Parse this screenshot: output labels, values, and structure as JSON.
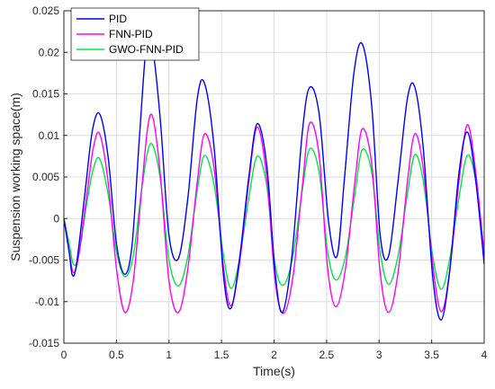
{
  "chart_data": {
    "type": "line",
    "title": "",
    "xlabel": "Time(s)",
    "ylabel": "Suspension working space(m)",
    "xlim": [
      0,
      4
    ],
    "ylim": [
      -0.015,
      0.025
    ],
    "x_ticks": [
      "0",
      "0.5",
      "1",
      "1.5",
      "2",
      "2.5",
      "3",
      "3.5",
      "4"
    ],
    "y_ticks": [
      "-0.015",
      "-0.01",
      "-0.005",
      "0",
      "0.005",
      "0.01",
      "0.015",
      "0.02",
      "0.025"
    ],
    "grid": true,
    "legend_position": "top-left",
    "series": [
      {
        "name": "PID",
        "color": "#0000ff",
        "x": [
          0,
          0.05,
          0.08,
          0.12,
          0.2,
          0.27,
          0.34,
          0.42,
          0.5,
          0.58,
          0.65,
          0.72,
          0.79,
          0.85,
          0.92,
          1.0,
          1.09,
          1.18,
          1.27,
          1.34,
          1.43,
          1.52,
          1.59,
          1.67,
          1.76,
          1.84,
          1.93,
          2.01,
          2.08,
          2.17,
          2.27,
          2.34,
          2.43,
          2.52,
          2.6,
          2.67,
          2.76,
          2.84,
          2.93,
          3.01,
          3.09,
          3.18,
          3.27,
          3.34,
          3.42,
          3.51,
          3.59,
          3.67,
          3.76,
          3.84,
          3.92,
          4.0
        ],
        "y": [
          0,
          -0.004,
          -0.0068,
          -0.0055,
          0.003,
          0.0105,
          0.0126,
          0.0075,
          -0.003,
          -0.0067,
          -0.003,
          0.01,
          0.0215,
          0.02,
          0.0115,
          -0.002,
          -0.0048,
          0.0025,
          0.0145,
          0.0162,
          0.0085,
          -0.007,
          -0.0108,
          -0.005,
          0.005,
          0.0114,
          0.0065,
          -0.0065,
          -0.0113,
          -0.0045,
          0.0105,
          0.0158,
          0.0125,
          -0.0005,
          -0.0045,
          0.0048,
          0.0175,
          0.021,
          0.0135,
          -0.002,
          -0.0045,
          0.0045,
          0.0145,
          0.0158,
          0.0085,
          -0.007,
          -0.0122,
          -0.0065,
          0.0055,
          0.0104,
          0.0045,
          -0.0055
        ]
      },
      {
        "name": "FNN-PID",
        "color": "#ff00ff",
        "x": [
          0,
          0.05,
          0.09,
          0.14,
          0.22,
          0.28,
          0.34,
          0.42,
          0.5,
          0.58,
          0.66,
          0.74,
          0.8,
          0.85,
          0.92,
          1.0,
          1.09,
          1.18,
          1.27,
          1.34,
          1.43,
          1.52,
          1.59,
          1.67,
          1.76,
          1.84,
          1.93,
          2.01,
          2.09,
          2.18,
          2.27,
          2.34,
          2.43,
          2.51,
          2.59,
          2.68,
          2.77,
          2.84,
          2.93,
          3.01,
          3.09,
          3.18,
          3.27,
          3.34,
          3.42,
          3.51,
          3.59,
          3.67,
          3.76,
          3.84,
          3.92,
          4.0
        ],
        "y": [
          0,
          -0.004,
          -0.0065,
          -0.0045,
          0.003,
          0.0085,
          0.0102,
          0.0045,
          -0.006,
          -0.0113,
          -0.0075,
          0.0035,
          0.0112,
          0.012,
          0.005,
          -0.0075,
          -0.0113,
          -0.006,
          0.0045,
          0.0102,
          0.006,
          -0.006,
          -0.0105,
          -0.0055,
          0.0045,
          0.011,
          0.005,
          -0.0075,
          -0.0114,
          -0.007,
          0.004,
          0.0115,
          0.0075,
          -0.006,
          -0.0106,
          -0.006,
          0.0045,
          0.0108,
          0.0065,
          -0.0065,
          -0.0113,
          -0.0065,
          0.0045,
          0.0102,
          0.006,
          -0.0055,
          -0.0112,
          -0.0065,
          0.0045,
          0.0113,
          0.0055,
          -0.0045
        ]
      },
      {
        "name": "GWO-FNN-PID",
        "color": "#00e840",
        "x": [
          0,
          0.05,
          0.09,
          0.14,
          0.22,
          0.28,
          0.34,
          0.42,
          0.5,
          0.58,
          0.66,
          0.74,
          0.8,
          0.85,
          0.92,
          1.0,
          1.09,
          1.18,
          1.27,
          1.34,
          1.43,
          1.52,
          1.59,
          1.67,
          1.76,
          1.84,
          1.93,
          2.01,
          2.09,
          2.18,
          2.27,
          2.34,
          2.43,
          2.51,
          2.59,
          2.68,
          2.77,
          2.84,
          2.93,
          3.01,
          3.09,
          3.18,
          3.27,
          3.34,
          3.42,
          3.51,
          3.59,
          3.67,
          3.76,
          3.84,
          3.92,
          4.0
        ],
        "y": [
          0,
          -0.003,
          -0.0055,
          -0.0045,
          0.002,
          0.006,
          0.0072,
          0.003,
          -0.004,
          -0.007,
          -0.0045,
          0.0035,
          0.0082,
          0.0087,
          0.0045,
          -0.005,
          -0.0081,
          -0.0045,
          0.0035,
          0.0076,
          0.004,
          -0.0045,
          -0.0084,
          -0.005,
          0.0025,
          0.0075,
          0.004,
          -0.0055,
          -0.008,
          -0.0045,
          0.0035,
          0.0084,
          0.0055,
          -0.004,
          -0.0074,
          -0.0045,
          0.003,
          0.0083,
          0.0055,
          -0.004,
          -0.0079,
          -0.0045,
          0.003,
          0.0077,
          0.0045,
          -0.0045,
          -0.0085,
          -0.005,
          0.0025,
          0.0076,
          0.0045,
          -0.004
        ]
      }
    ]
  }
}
